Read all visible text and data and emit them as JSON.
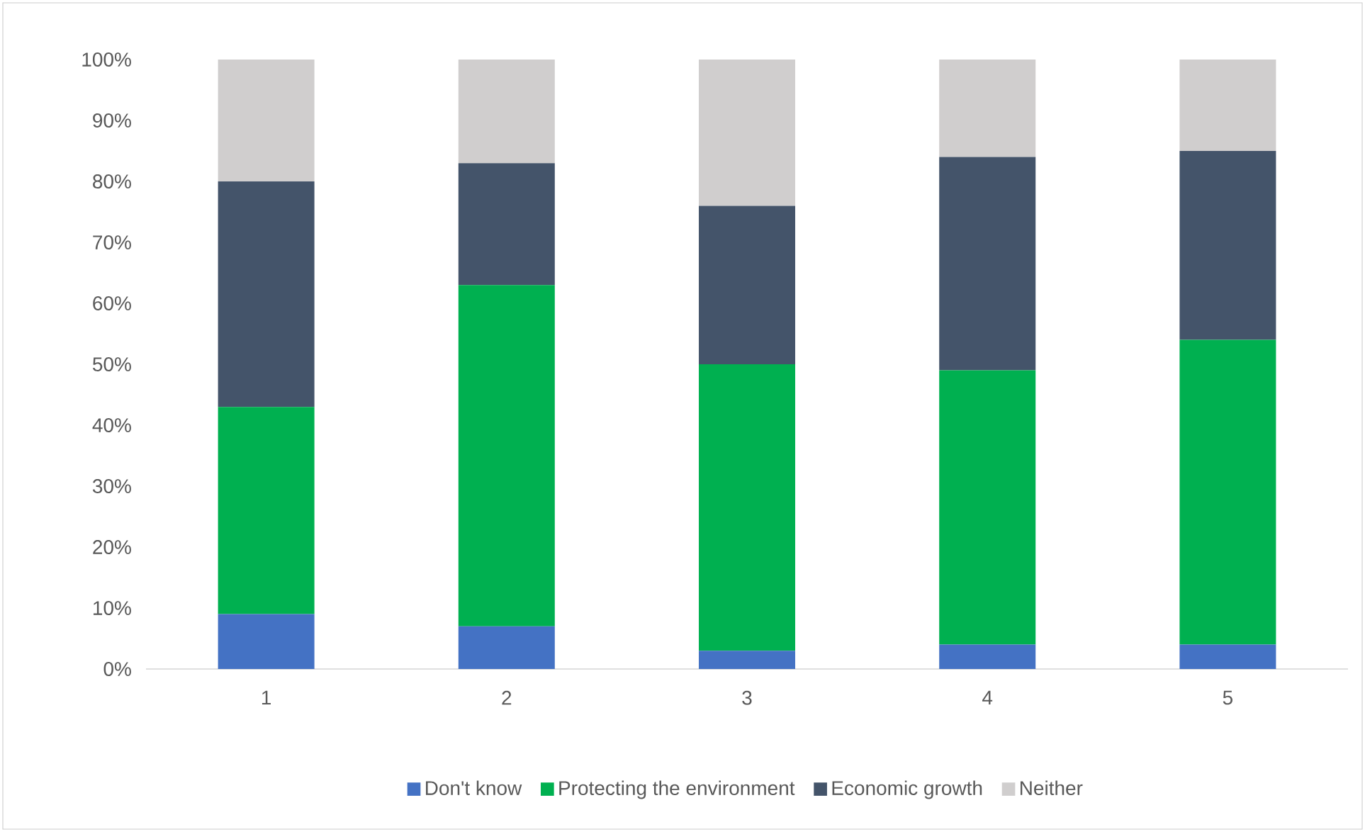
{
  "chart_data": {
    "type": "bar",
    "stacked": true,
    "categories": [
      "1",
      "2",
      "3",
      "4",
      "5"
    ],
    "series": [
      {
        "name": "Don't know",
        "color": "#4472c4",
        "values": [
          9,
          7,
          3,
          4,
          4
        ]
      },
      {
        "name": "Protecting the environment",
        "color": "#00b050",
        "values": [
          34,
          56,
          47,
          45,
          50
        ]
      },
      {
        "name": "Economic growth",
        "color": "#44546a",
        "values": [
          37,
          20,
          26,
          35,
          31
        ]
      },
      {
        "name": "Neither",
        "color": "#d0cece",
        "values": [
          20,
          17,
          24,
          16,
          15
        ]
      }
    ],
    "ylim": [
      0,
      100
    ],
    "yticks": [
      {
        "value": 0,
        "label": "0%"
      },
      {
        "value": 10,
        "label": "10%"
      },
      {
        "value": 20,
        "label": "20%"
      },
      {
        "value": 30,
        "label": "30%"
      },
      {
        "value": 40,
        "label": "40%"
      },
      {
        "value": 50,
        "label": "50%"
      },
      {
        "value": 60,
        "label": "60%"
      },
      {
        "value": 70,
        "label": "70%"
      },
      {
        "value": 80,
        "label": "80%"
      },
      {
        "value": 90,
        "label": "90%"
      },
      {
        "value": 100,
        "label": "100%"
      }
    ],
    "grid": false,
    "legend": "bottom"
  }
}
